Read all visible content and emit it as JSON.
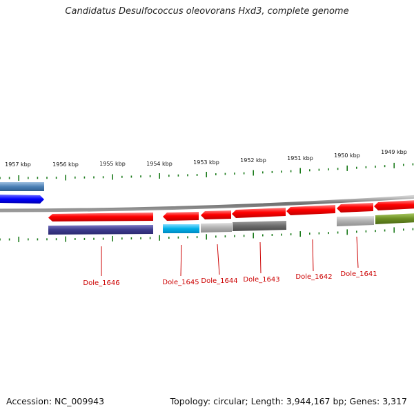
{
  "title": "Candidatus Desulfococcus oleovorans Hxd3, complete genome",
  "accession": "Accession: NC_009943",
  "summary": "Topology: circular; Length: 3,944,167 bp; Genes: 3,317",
  "kbp_labels": [
    "1957 kbp",
    "1956 kbp",
    "1955 kbp",
    "1954 kbp",
    "1953 kbp",
    "1952 kbp",
    "1951 kbp",
    "1950 kbp",
    "1949 kbp"
  ],
  "gene_labels": [
    "Dole_1646",
    "Dole_1645",
    "Dole_1644",
    "Dole_1643",
    "Dole_1642",
    "Dole_1641"
  ],
  "colors": {
    "gene_red": "#ff0000",
    "tick_green": "#1a7a1a",
    "label_red": "#cc0000",
    "backbone": "#888888",
    "navy": "#3d3b8c",
    "blue": "#0000ff",
    "steel_blue": "#4a7fb5",
    "cyan": "#00b0e8",
    "light_gray": "#b0b0b0",
    "dark_gray": "#6a6a6a",
    "olive": "#6b8e23"
  }
}
